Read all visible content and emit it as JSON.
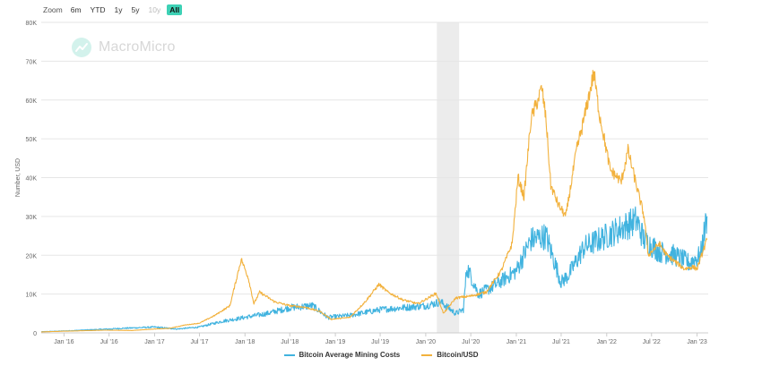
{
  "zoom": {
    "label": "Zoom",
    "buttons": [
      {
        "label": "6m",
        "state": "normal"
      },
      {
        "label": "YTD",
        "state": "normal"
      },
      {
        "label": "1y",
        "state": "normal"
      },
      {
        "label": "5y",
        "state": "normal"
      },
      {
        "label": "10y",
        "state": "disabled"
      },
      {
        "label": "All",
        "state": "active"
      }
    ]
  },
  "watermark": {
    "text": "MacroMicro"
  },
  "colors": {
    "mining": "#41b3df",
    "price": "#f2b13c",
    "grid": "#e6e6e6",
    "band": "#ececec"
  },
  "chart_data": {
    "type": "line",
    "ylabel": "Number, USD",
    "ylim": [
      0,
      80000
    ],
    "yticks": [
      0,
      10000,
      20000,
      30000,
      40000,
      50000,
      60000,
      70000,
      80000
    ],
    "ytick_labels": [
      "0",
      "10K",
      "20K",
      "30K",
      "40K",
      "50K",
      "60K",
      "70K",
      "80K"
    ],
    "xlim": [
      "2015-10-01",
      "2023-02-15"
    ],
    "xticks": [
      "2016-01-01",
      "2016-07-01",
      "2017-01-01",
      "2017-07-01",
      "2018-01-01",
      "2018-07-01",
      "2019-01-01",
      "2019-07-01",
      "2020-01-01",
      "2020-07-01",
      "2021-01-01",
      "2021-07-01",
      "2022-01-01",
      "2022-07-01",
      "2023-01-01"
    ],
    "xtick_labels": [
      "Jan '16",
      "Jul '16",
      "Jan '17",
      "Jul '17",
      "Jan '18",
      "Jul '18",
      "Jan '19",
      "Jul '19",
      "Jan '20",
      "Jul '20",
      "Jan '21",
      "Jul '21",
      "Jan '22",
      "Jul '22",
      "Jan '23"
    ],
    "grid": {
      "y": true,
      "x": false
    },
    "shaded_band": [
      "2020-02-15",
      "2020-05-15"
    ],
    "legend_position": "bottom-center",
    "series": [
      {
        "name": "Bitcoin Average Mining Costs",
        "color": "#41b3df",
        "x": [
          "2015-10-01",
          "2016-01-01",
          "2016-07-01",
          "2016-09-01",
          "2017-01-01",
          "2017-04-01",
          "2017-07-01",
          "2017-10-01",
          "2018-01-01",
          "2018-04-01",
          "2018-07-01",
          "2018-10-01",
          "2018-12-01",
          "2019-03-01",
          "2019-07-01",
          "2019-10-01",
          "2020-01-01",
          "2020-03-01",
          "2020-05-01",
          "2020-06-01",
          "2020-06-15",
          "2020-08-01",
          "2020-10-01",
          "2021-01-01",
          "2021-03-01",
          "2021-05-01",
          "2021-07-01",
          "2021-08-01",
          "2021-10-01",
          "2022-01-01",
          "2022-03-01",
          "2022-05-01",
          "2022-06-01",
          "2022-08-01",
          "2022-10-01",
          "2022-12-01",
          "2023-01-15",
          "2023-02-10"
        ],
        "y": [
          300,
          500,
          1000,
          1200,
          1500,
          1000,
          1500,
          3000,
          4000,
          5000,
          6500,
          7000,
          4000,
          4500,
          6000,
          6500,
          7000,
          8000,
          5000,
          6000,
          17000,
          10000,
          12000,
          16000,
          24000,
          25000,
          13000,
          15000,
          22000,
          25000,
          27000,
          29000,
          24000,
          21000,
          20000,
          18000,
          20000,
          30000
        ]
      },
      {
        "name": "Bitcoin/USD",
        "color": "#f2b13c",
        "x": [
          "2015-10-01",
          "2016-01-01",
          "2016-06-15",
          "2016-10-01",
          "2017-01-01",
          "2017-03-01",
          "2017-05-01",
          "2017-07-01",
          "2017-09-01",
          "2017-11-01",
          "2017-12-17",
          "2018-01-15",
          "2018-02-06",
          "2018-03-01",
          "2018-05-01",
          "2018-07-01",
          "2018-09-01",
          "2018-11-01",
          "2018-12-15",
          "2019-03-01",
          "2019-05-01",
          "2019-06-26",
          "2019-08-01",
          "2019-10-01",
          "2019-12-01",
          "2020-02-12",
          "2020-03-13",
          "2020-05-01",
          "2020-07-01",
          "2020-09-01",
          "2020-11-01",
          "2020-12-15",
          "2021-01-08",
          "2021-02-01",
          "2021-03-01",
          "2021-04-14",
          "2021-05-01",
          "2021-05-20",
          "2021-06-20",
          "2021-07-20",
          "2021-09-01",
          "2021-10-01",
          "2021-11-10",
          "2021-12-01",
          "2022-01-15",
          "2022-03-01",
          "2022-03-28",
          "2022-05-01",
          "2022-06-01",
          "2022-06-18",
          "2022-08-01",
          "2022-09-01",
          "2022-11-10",
          "2022-12-15",
          "2023-01-01",
          "2023-02-10"
        ],
        "y": [
          250,
          430,
          700,
          620,
          1000,
          1150,
          2000,
          2500,
          4500,
          7000,
          19000,
          14000,
          7500,
          10500,
          8000,
          7000,
          6600,
          5500,
          3500,
          4000,
          8000,
          12500,
          10500,
          8500,
          7500,
          10200,
          5000,
          9000,
          9500,
          10500,
          16000,
          23000,
          40000,
          35000,
          55000,
          63000,
          55000,
          38000,
          33000,
          30000,
          47000,
          55000,
          67000,
          57000,
          42000,
          39000,
          47000,
          38000,
          30000,
          20000,
          23000,
          20000,
          16500,
          17000,
          16500,
          24000
        ]
      }
    ]
  }
}
